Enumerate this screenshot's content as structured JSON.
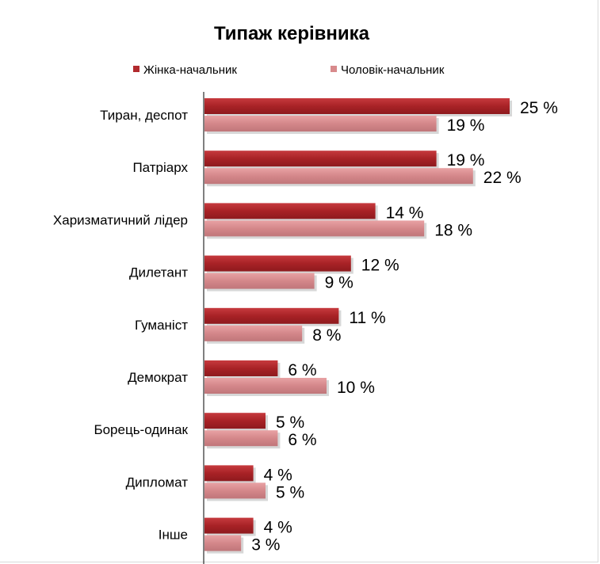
{
  "chart_data": {
    "type": "bar",
    "orientation": "horizontal",
    "title": "Типаж керівника",
    "categories": [
      "Тиран, деспот",
      "Патріарх",
      "Харизматичний лідер",
      "Дилетант",
      "Гуманіст",
      "Демократ",
      "Борець-одинак",
      "Дипломат",
      "Інше"
    ],
    "series": [
      {
        "name": "Жінка-начальник",
        "color": "#b22a2e",
        "values": [
          25,
          19,
          14,
          12,
          11,
          6,
          5,
          4,
          4
        ],
        "labels": [
          "25 %",
          "19 %",
          "14 %",
          "12 %",
          "11 %",
          "6 %",
          "5 %",
          "4 %",
          "4 %"
        ]
      },
      {
        "name": "Чоловік-начальник",
        "color": "#d88a8c",
        "values": [
          19,
          22,
          18,
          9,
          8,
          10,
          6,
          5,
          3
        ],
        "labels": [
          "19 %",
          "22 %",
          "18 %",
          "9 %",
          "8 %",
          "10 %",
          "6 %",
          "5 %",
          "3 %"
        ]
      }
    ],
    "xlim": [
      0,
      25
    ],
    "grid": false,
    "legend_position": "top"
  }
}
